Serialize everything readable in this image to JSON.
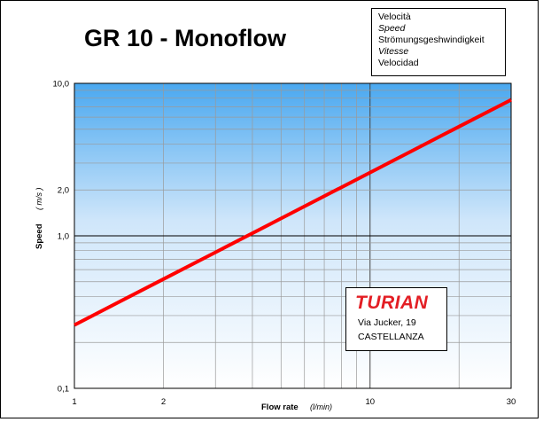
{
  "title": "GR 10 - Monoflow",
  "legend_box": {
    "lines": [
      "Velocità",
      "Speed",
      "Strömungsgeshwindigkeit",
      "Vitesse",
      "Velocidad"
    ]
  },
  "logo_box": {
    "name": "TURIAN",
    "address": "Via Jucker, 19",
    "city": "CASTELLANZA",
    "color": "#e31e24"
  },
  "chart_data": {
    "type": "line",
    "x_scale": "log",
    "y_scale": "log",
    "xlabel": "Flow rate",
    "xunit": "(l/min)",
    "ylabel": "Speed",
    "yunit": "( m/s )",
    "xlim": [
      1,
      30
    ],
    "ylim": [
      0.1,
      10
    ],
    "x_ticks": [
      {
        "value": 1,
        "label": "1"
      },
      {
        "value": 2,
        "label": "2"
      },
      {
        "value": 10,
        "label": "10"
      },
      {
        "value": 30,
        "label": "30"
      }
    ],
    "y_ticks": [
      {
        "value": 0.1,
        "label": "0,1"
      },
      {
        "value": 1,
        "label": "1,0"
      },
      {
        "value": 2,
        "label": "2,0"
      },
      {
        "value": 10,
        "label": "10,0"
      }
    ],
    "grid": true,
    "series": [
      {
        "color": "#ff0000",
        "x": [
          1,
          2,
          3,
          5,
          10,
          20,
          30
        ],
        "y": [
          0.26,
          0.52,
          0.78,
          1.3,
          2.6,
          5.2,
          7.8
        ]
      }
    ]
  }
}
